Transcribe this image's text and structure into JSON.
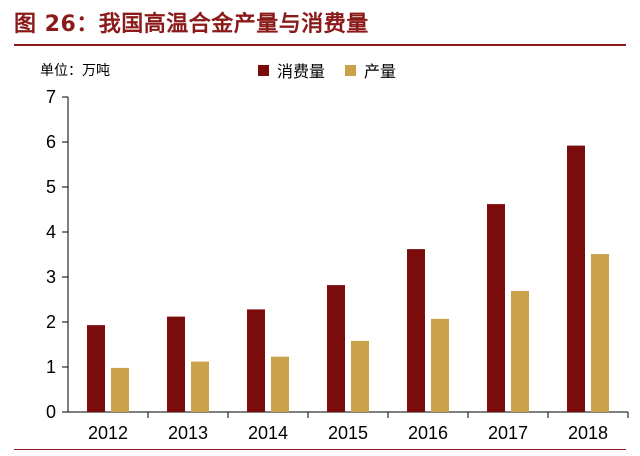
{
  "title": "图 26：我国高温合金产量与消费量",
  "unit_label": "单位：万吨",
  "colors": {
    "consumption": "#7b0c0c",
    "production": "#c9a24b",
    "title": "#8b1a1a"
  },
  "chart_data": {
    "type": "bar",
    "categories": [
      "2012",
      "2013",
      "2014",
      "2015",
      "2016",
      "2017",
      "2018"
    ],
    "series": [
      {
        "name": "消费量",
        "values": [
          1.93,
          2.12,
          2.28,
          2.82,
          3.62,
          4.62,
          5.92
        ]
      },
      {
        "name": "产量",
        "values": [
          0.98,
          1.12,
          1.23,
          1.58,
          2.07,
          2.69,
          3.51
        ]
      }
    ],
    "ylim": [
      0,
      7
    ],
    "yticks": [
      "0",
      "1",
      "2",
      "3",
      "4",
      "5",
      "6",
      "7"
    ],
    "legend_position": "top",
    "grid": false
  }
}
